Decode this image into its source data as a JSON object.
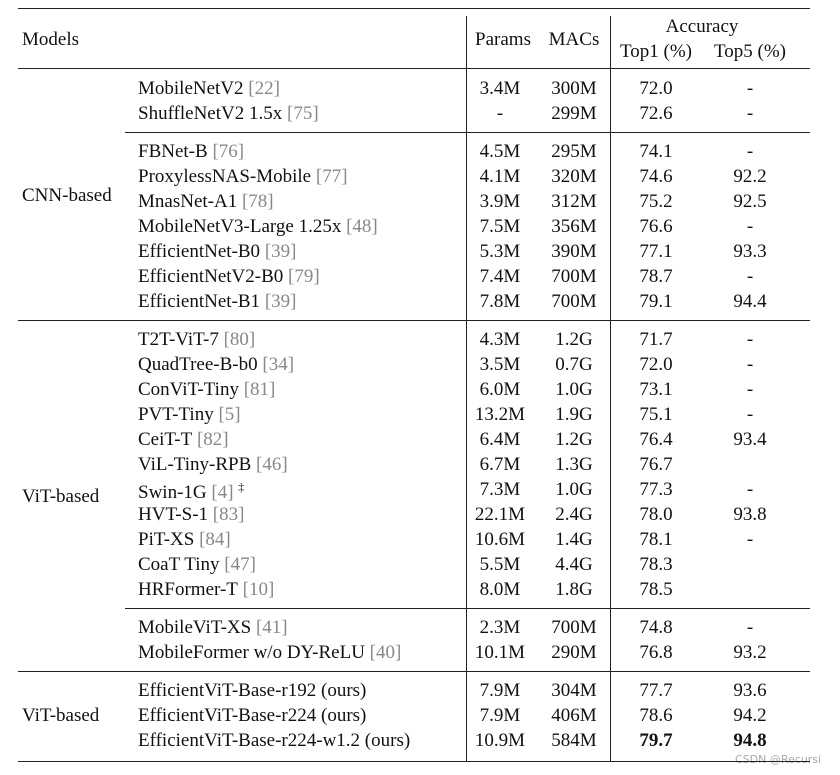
{
  "header": {
    "models": "Models",
    "params": "Params",
    "macs": "MACs",
    "accuracy": "Accuracy",
    "top1": "Top1 (%)",
    "top5": "Top5 (%)"
  },
  "groups": [
    {
      "label": "CNN-based",
      "subgroups": [
        [
          {
            "model": "MobileNetV2",
            "ref": "[22]",
            "params": "3.4M",
            "macs": "300M",
            "top1": "72.0",
            "top5": "-"
          },
          {
            "model": "ShuffleNetV2 1.5x",
            "ref": "[75]",
            "params": "-",
            "macs": "299M",
            "top1": "72.6",
            "top5": "-"
          }
        ],
        [
          {
            "model": "FBNet-B",
            "ref": "[76]",
            "params": "4.5M",
            "macs": "295M",
            "top1": "74.1",
            "top5": "-"
          },
          {
            "model": "ProxylessNAS-Mobile",
            "ref": "[77]",
            "params": "4.1M",
            "macs": "320M",
            "top1": "74.6",
            "top5": "92.2"
          },
          {
            "model": "MnasNet-A1",
            "ref": "[78]",
            "params": "3.9M",
            "macs": "312M",
            "top1": "75.2",
            "top5": "92.5"
          },
          {
            "model": "MobileNetV3-Large 1.25x",
            "ref": "[48]",
            "params": "7.5M",
            "macs": "356M",
            "top1": "76.6",
            "top5": "-"
          },
          {
            "model": "EfficientNet-B0",
            "ref": "[39]",
            "params": "5.3M",
            "macs": "390M",
            "top1": "77.1",
            "top5": "93.3"
          },
          {
            "model": "EfficientNetV2-B0",
            "ref": "[79]",
            "params": "7.4M",
            "macs": "700M",
            "top1": "78.7",
            "top5": "-"
          },
          {
            "model": "EfficientNet-B1",
            "ref": "[39]",
            "params": "7.8M",
            "macs": "700M",
            "top1": "79.1",
            "top5": "94.4"
          }
        ]
      ]
    },
    {
      "label": "ViT-based",
      "subgroups": [
        [
          {
            "model": "T2T-ViT-7",
            "ref": "[80]",
            "params": "4.3M",
            "macs": "1.2G",
            "top1": "71.7",
            "top5": "-"
          },
          {
            "model": "QuadTree-B-b0",
            "ref": "[34]",
            "params": "3.5M",
            "macs": "0.7G",
            "top1": "72.0",
            "top5": "-"
          },
          {
            "model": "ConViT-Tiny",
            "ref": "[81]",
            "params": "6.0M",
            "macs": "1.0G",
            "top1": "73.1",
            "top5": "-"
          },
          {
            "model": "PVT-Tiny",
            "ref": "[5]",
            "params": "13.2M",
            "macs": "1.9G",
            "top1": "75.1",
            "top5": "-"
          },
          {
            "model": "CeiT-T",
            "ref": "[82]",
            "params": "6.4M",
            "macs": "1.2G",
            "top1": "76.4",
            "top5": "93.4"
          },
          {
            "model": "ViL-Tiny-RPB",
            "ref": "[46]",
            "params": "6.7M",
            "macs": "1.3G",
            "top1": "76.7"
          },
          {
            "model": "Swin-1G",
            "ref": "[4]",
            "note": "‡",
            "params": "7.3M",
            "macs": "1.0G",
            "top1": "77.3",
            "top5": "-"
          },
          {
            "model": "HVT-S-1",
            "ref": "[83]",
            "params": "22.1M",
            "macs": "2.4G",
            "top1": "78.0",
            "top5": "93.8"
          },
          {
            "model": "PiT-XS",
            "ref": "[84]",
            "params": "10.6M",
            "macs": "1.4G",
            "top1": "78.1",
            "top5": "-"
          },
          {
            "model": "CoaT Tiny",
            "ref": "[47]",
            "params": "5.5M",
            "macs": "4.4G",
            "top1": "78.3"
          },
          {
            "model": "HRFormer-T",
            "ref": "[10]",
            "params": "8.0M",
            "macs": "1.8G",
            "top1": "78.5"
          }
        ],
        [
          {
            "model": "MobileViT-XS",
            "ref": "[41]",
            "params": "2.3M",
            "macs": "700M",
            "top1": "74.8",
            "top5": "-"
          },
          {
            "model": "MobileFormer w/o DY-ReLU",
            "ref": "[40]",
            "params": "10.1M",
            "macs": "290M",
            "top1": "76.8",
            "top5": "93.2"
          }
        ]
      ]
    },
    {
      "label": "ViT-based",
      "subgroups": [
        [
          {
            "model": "EfficientViT-Base-r192 (ours)",
            "params": "7.9M",
            "macs": "304M",
            "top1": "77.7",
            "top5": "93.6"
          },
          {
            "model": "EfficientViT-Base-r224 (ours)",
            "params": "7.9M",
            "macs": "406M",
            "top1": "78.6",
            "top5": "94.2"
          },
          {
            "model": "EfficientViT-Base-r224-w1.2 (ours)",
            "params": "10.9M",
            "macs": "584M",
            "top1": "79.7",
            "top5": "94.8"
          }
        ]
      ]
    }
  ],
  "watermark": "CSDN @Recursi"
}
